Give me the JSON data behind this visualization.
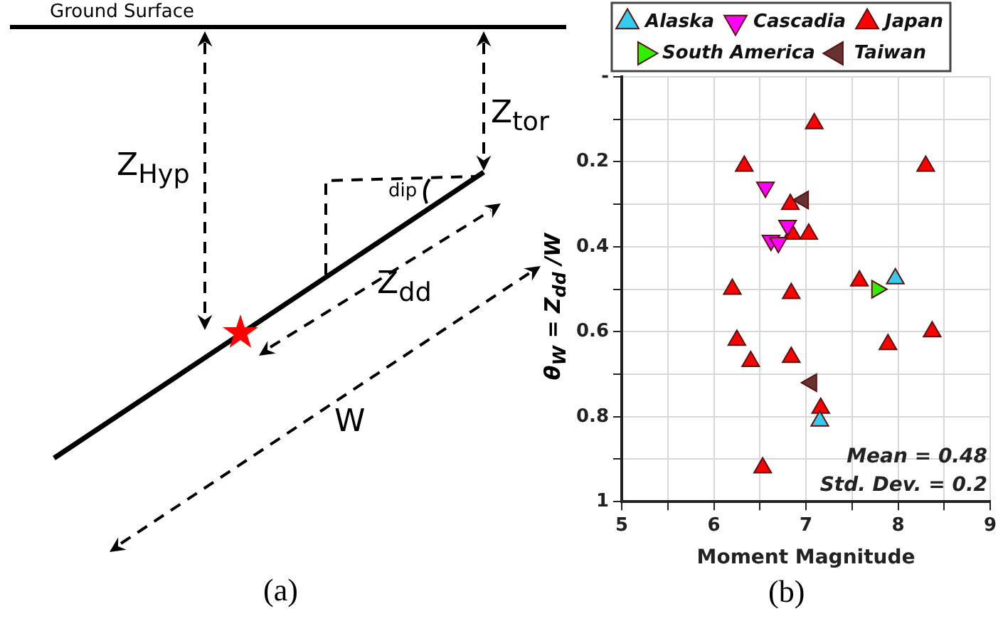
{
  "chart_data": [
    {
      "type": "other",
      "annotations": [
        "Ground Surface",
        "Z$_{Hyp}$",
        "Z$_{tor}$",
        "dip",
        "Z$_{dd}$",
        "W",
        "(a)"
      ]
    },
    {
      "type": "scatter",
      "xlabel": "Moment Magnitude",
      "ylabel": "θ$_{W}$ = Z$_{dd}$ /W",
      "marker": "triangle",
      "grid": true,
      "legend": "top",
      "xlim": [
        5,
        9
      ],
      "xticks": [
        5,
        {
          "value": 5.5,
          "label": null
        },
        6,
        {
          "value": 6.5,
          "label": null
        },
        7,
        {
          "value": 7.5,
          "label": null
        },
        8,
        {
          "value": 8.5,
          "label": null
        },
        9
      ],
      "ylim": [
        1,
        0
      ],
      "yticks": [
        {
          "value": 0,
          "label": "-"
        },
        {
          "value": 0.1,
          "label": null
        },
        0.2,
        {
          "value": 0.3,
          "label": null
        },
        0.4,
        {
          "value": 0.5,
          "label": null
        },
        0.6,
        {
          "value": 0.7,
          "label": null
        },
        0.8,
        {
          "value": 0.9,
          "label": null
        },
        1
      ],
      "annotations": [
        "Mean = 0.48",
        "Std. Dev. = 0.2",
        "(b)"
      ],
      "series": [
        {
          "name": "Alaska",
          "color": "#33ccee",
          "x": [
            7.97,
            7.15
          ],
          "values": [
            0.475,
            0.81
          ]
        },
        {
          "name": "Cascadia",
          "color": "#ff00ff",
          "x": [
            6.56,
            6.8,
            6.62,
            6.7
          ],
          "values": [
            0.26,
            0.35,
            0.385,
            0.39
          ]
        },
        {
          "name": "Japan",
          "color": "#ff0000",
          "x": [
            7.09,
            6.33,
            8.3,
            6.83,
            6.85,
            7.03,
            6.2,
            6.84,
            7.58,
            6.25,
            6.4,
            6.84,
            7.89,
            8.37,
            7.16,
            6.53
          ],
          "values": [
            0.11,
            0.21,
            0.21,
            0.3,
            0.37,
            0.37,
            0.5,
            0.51,
            0.48,
            0.62,
            0.67,
            0.66,
            0.63,
            0.6,
            0.78,
            0.92
          ]
        },
        {
          "name": "South America",
          "color": "#33ee00",
          "x": [
            7.77
          ],
          "values": [
            0.5
          ]
        },
        {
          "name": "Taiwan",
          "color": "#663333",
          "x": [
            6.97,
            7.06
          ],
          "values": [
            0.29,
            0.72
          ]
        }
      ]
    }
  ]
}
